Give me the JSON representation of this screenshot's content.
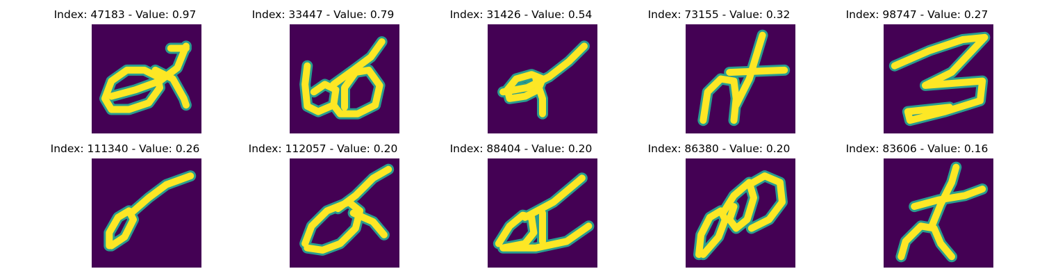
{
  "background_color": "#440154",
  "stroke_color": "#fde725",
  "edge_color": "#2a9d8f",
  "chart_data": [
    {
      "type": "image",
      "title": "Index: 47183 - Value: 0.97",
      "strokes": [
        [
          [
            0.18,
            0.78
          ],
          [
            0.12,
            0.68
          ],
          [
            0.18,
            0.52
          ],
          [
            0.32,
            0.42
          ],
          [
            0.48,
            0.42
          ],
          [
            0.6,
            0.48
          ],
          [
            0.62,
            0.58
          ],
          [
            0.52,
            0.72
          ],
          [
            0.34,
            0.78
          ],
          [
            0.18,
            0.78
          ]
        ],
        [
          [
            0.18,
            0.66
          ],
          [
            0.4,
            0.6
          ],
          [
            0.62,
            0.52
          ],
          [
            0.78,
            0.4
          ],
          [
            0.86,
            0.2
          ]
        ],
        [
          [
            0.72,
            0.22
          ],
          [
            0.86,
            0.22
          ]
        ],
        [
          [
            0.58,
            0.42
          ],
          [
            0.74,
            0.5
          ],
          [
            0.84,
            0.68
          ],
          [
            0.86,
            0.74
          ]
        ]
      ]
    },
    {
      "type": "image",
      "title": "Index: 33447 - Value: 0.79",
      "strokes": [
        [
          [
            0.16,
            0.38
          ],
          [
            0.14,
            0.55
          ],
          [
            0.16,
            0.75
          ],
          [
            0.26,
            0.8
          ],
          [
            0.4,
            0.74
          ],
          [
            0.42,
            0.6
          ],
          [
            0.32,
            0.55
          ],
          [
            0.22,
            0.62
          ]
        ],
        [
          [
            0.4,
            0.74
          ],
          [
            0.46,
            0.82
          ],
          [
            0.62,
            0.82
          ],
          [
            0.78,
            0.74
          ],
          [
            0.82,
            0.56
          ],
          [
            0.72,
            0.42
          ],
          [
            0.6,
            0.44
          ],
          [
            0.5,
            0.58
          ],
          [
            0.5,
            0.76
          ]
        ],
        [
          [
            0.4,
            0.55
          ],
          [
            0.58,
            0.42
          ],
          [
            0.74,
            0.3
          ],
          [
            0.84,
            0.16
          ]
        ]
      ]
    },
    {
      "type": "image",
      "title": "Index: 31426 - Value: 0.54",
      "strokes": [
        [
          [
            0.2,
            0.68
          ],
          [
            0.18,
            0.6
          ],
          [
            0.26,
            0.5
          ],
          [
            0.4,
            0.46
          ],
          [
            0.5,
            0.5
          ],
          [
            0.46,
            0.6
          ],
          [
            0.34,
            0.66
          ],
          [
            0.2,
            0.68
          ]
        ],
        [
          [
            0.14,
            0.62
          ],
          [
            0.36,
            0.58
          ],
          [
            0.56,
            0.48
          ],
          [
            0.74,
            0.34
          ],
          [
            0.88,
            0.2
          ]
        ],
        [
          [
            0.44,
            0.5
          ],
          [
            0.5,
            0.68
          ],
          [
            0.5,
            0.82
          ]
        ]
      ]
    },
    {
      "type": "image",
      "title": "Index: 73155 - Value: 0.32",
      "strokes": [
        [
          [
            0.16,
            0.88
          ],
          [
            0.2,
            0.62
          ],
          [
            0.32,
            0.5
          ],
          [
            0.44,
            0.52
          ],
          [
            0.46,
            0.68
          ],
          [
            0.44,
            0.88
          ]
        ],
        [
          [
            0.46,
            0.74
          ],
          [
            0.58,
            0.5
          ],
          [
            0.7,
            0.1
          ]
        ],
        [
          [
            0.4,
            0.44
          ],
          [
            0.9,
            0.42
          ]
        ]
      ]
    },
    {
      "type": "image",
      "title": "Index: 98747 - Value: 0.27",
      "strokes": [
        [
          [
            0.1,
            0.38
          ],
          [
            0.42,
            0.24
          ],
          [
            0.72,
            0.14
          ],
          [
            0.92,
            0.12
          ],
          [
            0.62,
            0.44
          ],
          [
            0.38,
            0.56
          ],
          [
            0.9,
            0.52
          ],
          [
            0.88,
            0.7
          ],
          [
            0.56,
            0.8
          ],
          [
            0.24,
            0.88
          ],
          [
            0.22,
            0.8
          ],
          [
            0.6,
            0.76
          ]
        ]
      ]
    },
    {
      "type": "image",
      "title": "Index: 111340 - Value: 0.26",
      "strokes": [
        [
          [
            0.16,
            0.8
          ],
          [
            0.16,
            0.68
          ],
          [
            0.24,
            0.54
          ],
          [
            0.34,
            0.48
          ],
          [
            0.38,
            0.56
          ],
          [
            0.3,
            0.72
          ],
          [
            0.18,
            0.8
          ]
        ],
        [
          [
            0.36,
            0.5
          ],
          [
            0.52,
            0.36
          ],
          [
            0.68,
            0.24
          ],
          [
            0.9,
            0.16
          ]
        ]
      ]
    },
    {
      "type": "image",
      "title": "Index: 112057 - Value: 0.20",
      "strokes": [
        [
          [
            0.14,
            0.78
          ],
          [
            0.2,
            0.62
          ],
          [
            0.34,
            0.48
          ],
          [
            0.54,
            0.4
          ],
          [
            0.64,
            0.48
          ],
          [
            0.6,
            0.64
          ],
          [
            0.46,
            0.78
          ],
          [
            0.3,
            0.84
          ],
          [
            0.16,
            0.82
          ]
        ],
        [
          [
            0.44,
            0.46
          ],
          [
            0.6,
            0.34
          ],
          [
            0.76,
            0.18
          ],
          [
            0.9,
            0.1
          ]
        ],
        [
          [
            0.58,
            0.5
          ],
          [
            0.76,
            0.58
          ],
          [
            0.86,
            0.7
          ]
        ]
      ]
    },
    {
      "type": "image",
      "title": "Index: 88404 - Value: 0.20",
      "strokes": [
        [
          [
            0.1,
            0.78
          ],
          [
            0.2,
            0.62
          ],
          [
            0.32,
            0.52
          ],
          [
            0.4,
            0.54
          ],
          [
            0.42,
            0.68
          ],
          [
            0.34,
            0.78
          ],
          [
            0.14,
            0.82
          ],
          [
            0.44,
            0.82
          ],
          [
            0.72,
            0.76
          ],
          [
            0.92,
            0.62
          ]
        ],
        [
          [
            0.34,
            0.54
          ],
          [
            0.6,
            0.4
          ],
          [
            0.86,
            0.18
          ]
        ],
        [
          [
            0.5,
            0.5
          ],
          [
            0.5,
            0.76
          ]
        ]
      ]
    },
    {
      "type": "image",
      "title": "Index: 86380 - Value: 0.20",
      "strokes": [
        [
          [
            0.12,
            0.88
          ],
          [
            0.14,
            0.7
          ],
          [
            0.22,
            0.54
          ],
          [
            0.32,
            0.48
          ],
          [
            0.36,
            0.56
          ],
          [
            0.3,
            0.72
          ],
          [
            0.16,
            0.88
          ]
        ],
        [
          [
            0.34,
            0.5
          ],
          [
            0.44,
            0.34
          ],
          [
            0.58,
            0.22
          ],
          [
            0.62,
            0.36
          ],
          [
            0.56,
            0.56
          ],
          [
            0.46,
            0.64
          ],
          [
            0.4,
            0.56
          ],
          [
            0.44,
            0.44
          ]
        ],
        [
          [
            0.58,
            0.24
          ],
          [
            0.72,
            0.16
          ],
          [
            0.86,
            0.22
          ],
          [
            0.88,
            0.4
          ],
          [
            0.76,
            0.56
          ],
          [
            0.6,
            0.64
          ]
        ]
      ]
    },
    {
      "type": "image",
      "title": "Index: 83606 - Value: 0.16",
      "strokes": [
        [
          [
            0.16,
            0.9
          ],
          [
            0.2,
            0.76
          ],
          [
            0.34,
            0.62
          ],
          [
            0.46,
            0.64
          ],
          [
            0.52,
            0.78
          ],
          [
            0.62,
            0.9
          ]
        ],
        [
          [
            0.44,
            0.62
          ],
          [
            0.52,
            0.42
          ],
          [
            0.62,
            0.22
          ],
          [
            0.66,
            0.08
          ]
        ],
        [
          [
            0.28,
            0.44
          ],
          [
            0.5,
            0.38
          ],
          [
            0.74,
            0.34
          ],
          [
            0.9,
            0.28
          ]
        ]
      ]
    }
  ]
}
